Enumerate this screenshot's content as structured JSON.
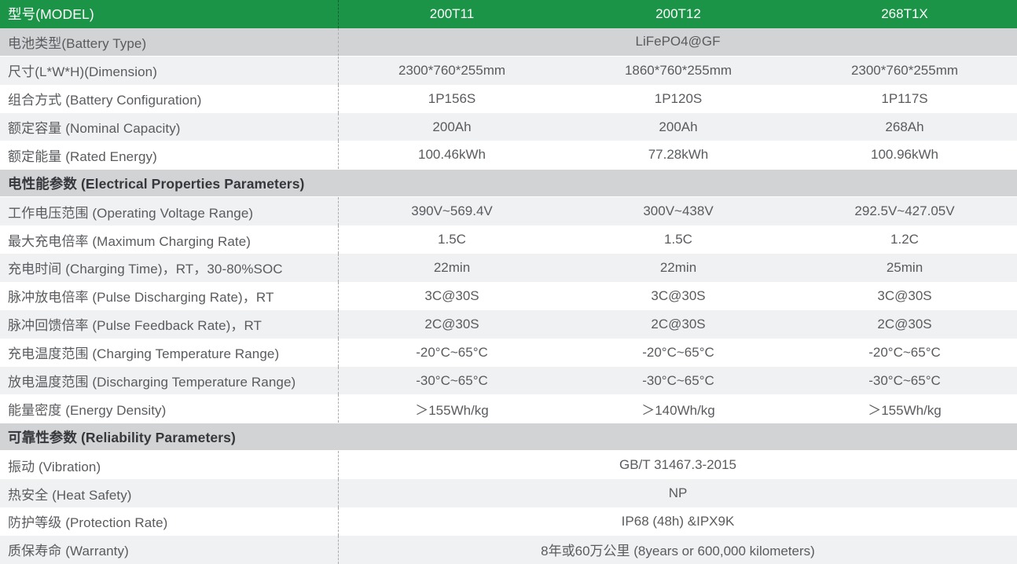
{
  "colors": {
    "header_green": "#1b9447",
    "section_gray": "#d1d3d5",
    "zebra_light": "#eff1f3",
    "text_gray": "#595b5e"
  },
  "table": {
    "header": {
      "label": "型号(MODEL)",
      "columns": [
        "200T11",
        "200T12",
        "268T1X"
      ]
    },
    "rows": [
      {
        "type": "spec-span",
        "bg": "dark",
        "label": "电池类型(Battery Type)",
        "value": "LiFePO4@GF"
      },
      {
        "type": "spec",
        "bg": "light",
        "label": "尺寸(L*W*H)(Dimension)",
        "values": [
          "2300*760*255mm",
          "1860*760*255mm",
          "2300*760*255mm"
        ]
      },
      {
        "type": "spec",
        "bg": "white",
        "label": "组合方式 (Battery Configuration)",
        "values": [
          "1P156S",
          "1P120S",
          "1P117S"
        ]
      },
      {
        "type": "spec",
        "bg": "light",
        "label": "额定容量 (Nominal Capacity)",
        "values": [
          "200Ah",
          "200Ah",
          "268Ah"
        ]
      },
      {
        "type": "spec",
        "bg": "white",
        "label": "额定能量 (Rated Energy)",
        "values": [
          "100.46kWh",
          "77.28kWh",
          "100.96kWh"
        ]
      },
      {
        "type": "section",
        "bg": "dark",
        "label": "电性能参数 (Electrical Properties Parameters)"
      },
      {
        "type": "spec",
        "bg": "light",
        "label": "工作电压范围 (Operating Voltage Range)",
        "values": [
          "390V~569.4V",
          "300V~438V",
          "292.5V~427.05V"
        ]
      },
      {
        "type": "spec",
        "bg": "white",
        "label": "最大充电倍率 (Maximum Charging Rate)",
        "values": [
          "1.5C",
          "1.5C",
          "1.2C"
        ]
      },
      {
        "type": "spec",
        "bg": "light",
        "label": "充电时间 (Charging Time)，RT，30-80%SOC",
        "values": [
          "22min",
          "22min",
          "25min"
        ]
      },
      {
        "type": "spec",
        "bg": "white",
        "label": "脉冲放电倍率 (Pulse Discharging Rate)，RT",
        "values": [
          "3C@30S",
          "3C@30S",
          "3C@30S"
        ]
      },
      {
        "type": "spec",
        "bg": "light",
        "label": "脉冲回馈倍率 (Pulse Feedback Rate)，RT",
        "values": [
          "2C@30S",
          "2C@30S",
          "2C@30S"
        ]
      },
      {
        "type": "spec",
        "bg": "white",
        "label": "充电温度范围 (Charging Temperature Range)",
        "values": [
          "-20°C~65°C",
          "-20°C~65°C",
          "-20°C~65°C"
        ]
      },
      {
        "type": "spec",
        "bg": "light",
        "label": "放电温度范围 (Discharging Temperature Range)",
        "values": [
          "-30°C~65°C",
          "-30°C~65°C",
          "-30°C~65°C"
        ]
      },
      {
        "type": "spec",
        "bg": "white",
        "label": "能量密度 (Energy Density)",
        "values": [
          "＞155Wh/kg",
          "＞140Wh/kg",
          "＞155Wh/kg"
        ]
      },
      {
        "type": "section",
        "bg": "dark",
        "label": "可靠性参数 (Reliability Parameters)"
      },
      {
        "type": "spec-span",
        "bg": "white",
        "label": "振动 (Vibration)",
        "value": "GB/T 31467.3-2015"
      },
      {
        "type": "spec-span",
        "bg": "light",
        "label": "热安全 (Heat Safety)",
        "value": "NP"
      },
      {
        "type": "spec-span",
        "bg": "white",
        "label": "防护等级 (Protection Rate)",
        "value": "IP68 (48h) &IPX9K"
      },
      {
        "type": "spec-span",
        "bg": "light",
        "label": "质保寿命 (Warranty)",
        "value": "8年或60万公里 (8years or 600,000 kilometers)"
      }
    ]
  }
}
